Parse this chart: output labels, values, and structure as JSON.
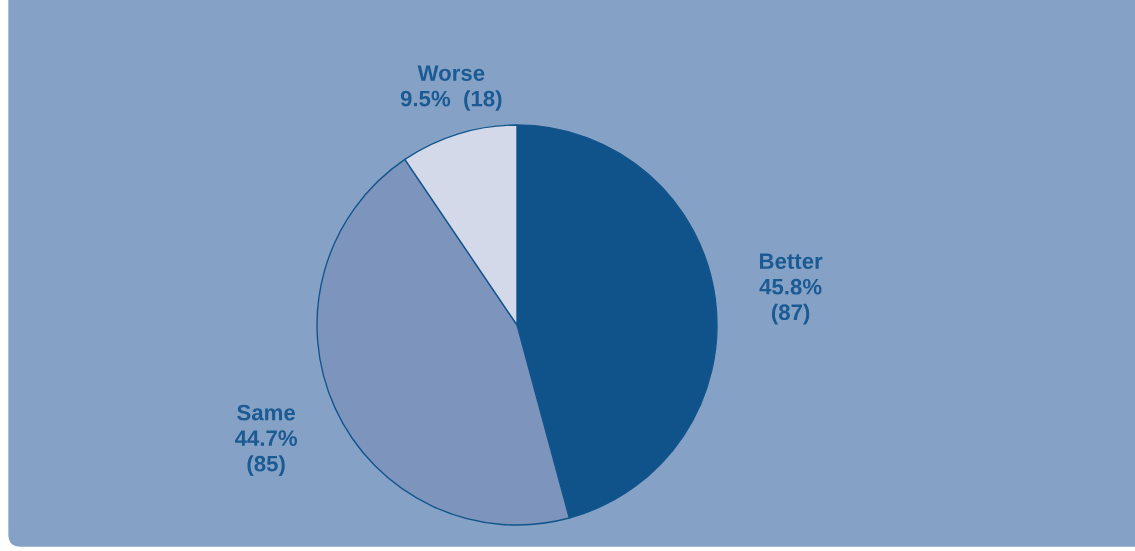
{
  "chart_data": {
    "type": "pie",
    "categories": [
      "Better",
      "Same",
      "Worse"
    ],
    "values": [
      87,
      85,
      18
    ],
    "colors": [
      "#0f538a",
      "#7d94bc",
      "#d3d9e8"
    ],
    "value_labels": [
      "45.8%\n(87)",
      "44.7%\n(85)",
      "9.5%  (18)"
    ]
  }
}
